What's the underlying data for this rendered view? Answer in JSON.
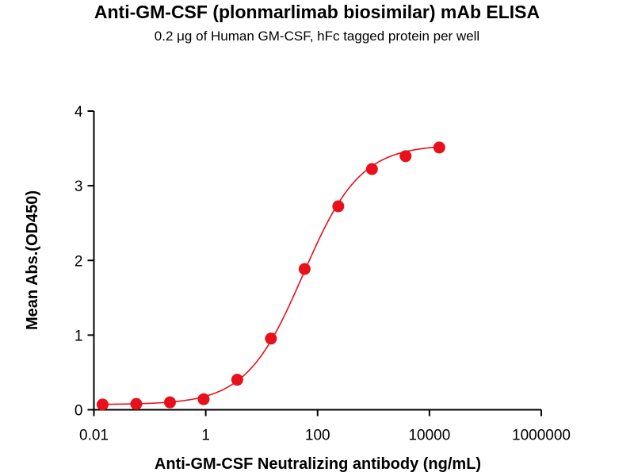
{
  "chart_data": {
    "type": "scatter",
    "title": "Anti-GM-CSF (plonmarlimab biosimilar) mAb ELISA",
    "subtitle": "0.2 μg of Human GM-CSF, hFc tagged protein per well",
    "xlabel": "Anti-GM-CSF Neutralizing antibody (ng/mL)",
    "ylabel": "Mean Abs.(OD450)",
    "xscale": "log",
    "xlim": [
      0.01,
      1000000
    ],
    "ylim": [
      0,
      4
    ],
    "xticks": [
      "0.01",
      "1",
      "100",
      "10000",
      "1000000"
    ],
    "xtick_values": [
      0.01,
      1,
      100,
      10000,
      1000000
    ],
    "yticks": [
      "0",
      "1",
      "2",
      "3",
      "4"
    ],
    "ytick_values": [
      0,
      1,
      2,
      3,
      4
    ],
    "grid": false,
    "color": "#e8101a",
    "series": [
      {
        "name": "Mean Abs.",
        "x": [
          0.0143,
          0.0572,
          0.229,
          0.916,
          3.66,
          14.65,
          58.6,
          234.4,
          937.5,
          3750,
          15000
        ],
        "y": [
          0.071,
          0.078,
          0.099,
          0.141,
          0.402,
          0.953,
          1.885,
          2.725,
          3.223,
          3.396,
          3.512
        ]
      }
    ],
    "fit": {
      "model": "4PL",
      "bottom": 0.07,
      "top": 3.55,
      "ec50": 55,
      "hill": 0.85
    }
  }
}
